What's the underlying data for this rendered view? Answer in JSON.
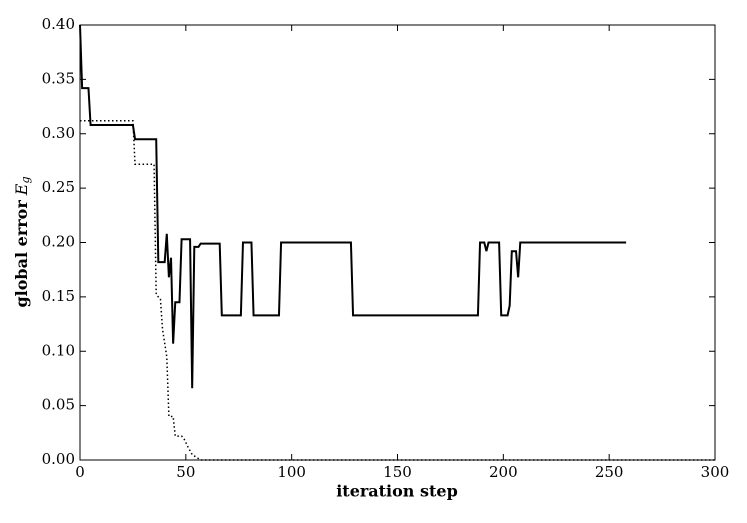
{
  "chart_data": {
    "type": "line",
    "xlabel": "iteration step",
    "ylabel": "global error",
    "ylabel_symbol": "E",
    "ylabel_subscript": "g",
    "xlim": [
      0,
      300
    ],
    "xticks": [
      0,
      50,
      100,
      150,
      200,
      250,
      300
    ],
    "ylim": [
      0,
      0.4
    ],
    "yticks": [
      {
        "value": 0,
        "label": "0.00"
      },
      {
        "value": 0.05,
        "label": "0.05"
      },
      {
        "value": 0.1,
        "label": "0.10"
      },
      {
        "value": 0.15,
        "label": "0.15"
      },
      {
        "value": 0.2,
        "label": "0.20"
      },
      {
        "value": 0.25,
        "label": "0.25"
      },
      {
        "value": 0.3,
        "label": "0.30"
      },
      {
        "value": 0.35,
        "label": "0.35"
      },
      {
        "value": 0.4,
        "label": "0.40"
      }
    ],
    "grid": false,
    "series": [
      {
        "color": "#000000",
        "style": "solid",
        "x": [
          0,
          1,
          4,
          5,
          25,
          26,
          36,
          37,
          40,
          41,
          42,
          43,
          44,
          45,
          47,
          48,
          52,
          53,
          54,
          56,
          57,
          66,
          67,
          76,
          77,
          81,
          82,
          94,
          95,
          128,
          129,
          188,
          189,
          191,
          192,
          193,
          198,
          199,
          202,
          203,
          204,
          206,
          207,
          208,
          258
        ],
        "values": [
          0.4,
          0.342,
          0.342,
          0.308,
          0.308,
          0.295,
          0.295,
          0.182,
          0.182,
          0.208,
          0.168,
          0.186,
          0.107,
          0.145,
          0.145,
          0.203,
          0.203,
          0.066,
          0.196,
          0.196,
          0.199,
          0.199,
          0.133,
          0.133,
          0.2,
          0.2,
          0.133,
          0.133,
          0.2,
          0.2,
          0.133,
          0.133,
          0.2,
          0.2,
          0.192,
          0.2,
          0.2,
          0.133,
          0.133,
          0.142,
          0.192,
          0.192,
          0.168,
          0.2,
          0.2
        ]
      },
      {
        "color": "#000000",
        "style": "dotted",
        "x": [
          0,
          25,
          26,
          35,
          36,
          38,
          39,
          41,
          42,
          44,
          45,
          48,
          49,
          51,
          53,
          57,
          300
        ],
        "values": [
          0.312,
          0.312,
          0.272,
          0.272,
          0.152,
          0.148,
          0.12,
          0.095,
          0.04,
          0.04,
          0.022,
          0.022,
          0.02,
          0.012,
          0.005,
          0,
          0
        ]
      }
    ]
  }
}
